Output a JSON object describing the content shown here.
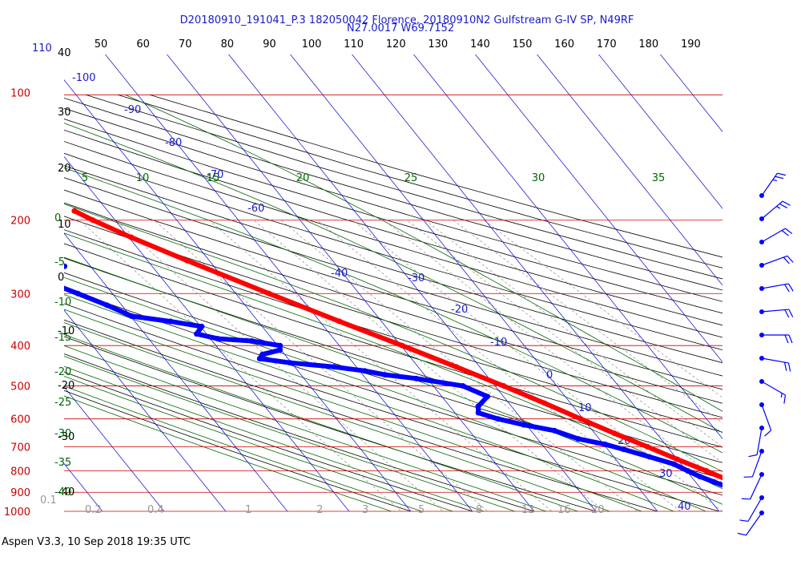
{
  "header": {
    "line1": "D20180910_191041_P.3 182050042 Florence, 20180910N2 Gulfstream G-IV SP, N49RF",
    "line2": "N27.0017 W69.7152"
  },
  "footer": {
    "text": "Aspen V3.3, 10 Sep 2018  19:35 UTC"
  },
  "colors": {
    "temperature": "#ff0000",
    "dewpoint": "#0000ff",
    "isobar": "#cc0000",
    "isotherm": "#0000cc",
    "dry_adiabat": "#000000",
    "moist_adiabat": "#006600",
    "mixing_ratio": "#888888",
    "wind": "#0000ff"
  },
  "chart_data": {
    "type": "skew-t",
    "pressure_axis": {
      "unit": "hPa",
      "ticks": [
        "100",
        "200",
        "300",
        "400",
        "500",
        "600",
        "700",
        "800",
        "900",
        "1000"
      ],
      "range": [
        100,
        1000
      ]
    },
    "top_left_label": "110",
    "top_axis_ticks": [
      "50",
      "60",
      "70",
      "80",
      "90",
      "100",
      "110",
      "120",
      "130",
      "140",
      "150",
      "160",
      "170",
      "180",
      "190"
    ],
    "height_ticks": [
      "40",
      "30",
      "20",
      "10",
      "0",
      "-10",
      "-20",
      "-30",
      "-40"
    ],
    "isotherm_labels": [
      "-100",
      "-90",
      "-80",
      "-70",
      "-60",
      "-40",
      "-30",
      "-20",
      "-10",
      "0",
      "10",
      "20",
      "30",
      "40"
    ],
    "theta_e_labels_top": [
      "5",
      "10",
      "15",
      "20",
      "25",
      "30",
      "35"
    ],
    "theta_e_labels_left": [
      "0",
      "-5",
      "-10",
      "-15",
      "-20",
      "-25",
      "-30",
      "-35",
      "-40"
    ],
    "mixing_ratio_labels": [
      "0.1",
      "0.2",
      "0.4",
      "1",
      "2",
      "3",
      "5",
      "8",
      "12",
      "16",
      "20"
    ],
    "series": [
      {
        "name": "temperature",
        "points": [
          [
            1000,
            25.5
          ],
          [
            980,
            24.0
          ],
          [
            960,
            22.6
          ],
          [
            940,
            21.4
          ],
          [
            925,
            20.6
          ],
          [
            900,
            19.3
          ],
          [
            880,
            17.8
          ],
          [
            860,
            16.6
          ],
          [
            850,
            16.0
          ],
          [
            800,
            13.2
          ],
          [
            750,
            10.0
          ],
          [
            700,
            6.8
          ],
          [
            650,
            3.2
          ],
          [
            600,
            -0.4
          ],
          [
            550,
            -4.2
          ],
          [
            500,
            -8.6
          ],
          [
            450,
            -13.8
          ],
          [
            400,
            -19.8
          ],
          [
            350,
            -26.8
          ],
          [
            300,
            -34.6
          ],
          [
            250,
            -43.6
          ],
          [
            220,
            -49.6
          ],
          [
            200,
            -53.6
          ],
          [
            190,
            -55.4
          ]
        ]
      },
      {
        "name": "dewpoint",
        "points": [
          [
            1000,
            21.0
          ],
          [
            975,
            20.2
          ],
          [
            950,
            19.4
          ],
          [
            925,
            18.2
          ],
          [
            900,
            16.4
          ],
          [
            875,
            14.6
          ],
          [
            850,
            13.0
          ],
          [
            825,
            11.4
          ],
          [
            800,
            10.2
          ],
          [
            770,
            8.8
          ],
          [
            740,
            5.8
          ],
          [
            710,
            2.6
          ],
          [
            690,
            0.2
          ],
          [
            670,
            -3.4
          ],
          [
            640,
            -6.2
          ],
          [
            620,
            -10.4
          ],
          [
            600,
            -13.8
          ],
          [
            580,
            -16.2
          ],
          [
            560,
            -15.4
          ],
          [
            530,
            -12.6
          ],
          [
            500,
            -15.2
          ],
          [
            480,
            -21.8
          ],
          [
            470,
            -26.4
          ],
          [
            460,
            -29.2
          ],
          [
            450,
            -33.6
          ],
          [
            440,
            -40.2
          ],
          [
            430,
            -44.6
          ],
          [
            420,
            -43.6
          ],
          [
            410,
            -40.2
          ],
          [
            400,
            -39.6
          ],
          [
            390,
            -43.6
          ],
          [
            385,
            -48.8
          ],
          [
            375,
            -51.6
          ],
          [
            360,
            -49.8
          ],
          [
            350,
            -54.2
          ],
          [
            340,
            -59.8
          ],
          [
            320,
            -62.4
          ],
          [
            300,
            -65.6
          ],
          [
            290,
            -67.4
          ],
          [
            275,
            -70.4
          ],
          [
            265,
            -68.2
          ],
          [
            258,
            -64.2
          ],
          [
            250,
            -68.4
          ],
          [
            238,
            -74.2
          ],
          [
            230,
            -76.8
          ],
          [
            225,
            -78.4
          ]
        ]
      }
    ],
    "wind_barbs": [
      [
        200,
        215,
        25
      ],
      [
        225,
        230,
        25
      ],
      [
        250,
        240,
        20
      ],
      [
        275,
        250,
        20
      ],
      [
        300,
        260,
        20
      ],
      [
        325,
        265,
        20
      ],
      [
        350,
        270,
        20
      ],
      [
        375,
        280,
        20
      ],
      [
        400,
        300,
        15
      ],
      [
        450,
        340,
        10
      ],
      [
        500,
        10,
        10
      ],
      [
        550,
        20,
        10
      ],
      [
        600,
        25,
        10
      ],
      [
        650,
        30,
        10
      ],
      [
        700,
        35,
        10
      ],
      [
        750,
        40,
        10
      ],
      [
        800,
        45,
        10
      ],
      [
        850,
        50,
        10
      ],
      [
        900,
        55,
        10
      ],
      [
        950,
        60,
        15
      ],
      [
        1000,
        70,
        15
      ]
    ],
    "grid": true
  }
}
